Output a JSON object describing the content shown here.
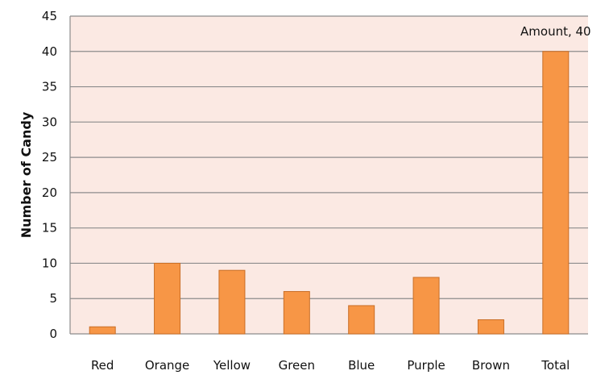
{
  "chart_data": {
    "type": "bar",
    "categories": [
      "Red",
      "Orange",
      "Yellow",
      "Green",
      "Blue",
      "Purple",
      "Brown",
      "Total"
    ],
    "values": [
      1,
      10,
      9,
      6,
      4,
      8,
      2,
      40
    ],
    "xlabel": "",
    "ylabel": "Number of Candy",
    "ylim": [
      0,
      45
    ],
    "yticks": [
      0,
      5,
      10,
      15,
      20,
      25,
      30,
      35,
      40,
      45
    ],
    "grid": true,
    "data_labels": [
      {
        "category": "Total",
        "text": "Amount, 40"
      }
    ],
    "colors": {
      "bar": "#f79646",
      "bar_edge": "#c96e26",
      "plot_background": "#fbe9e3",
      "grid": "#8c8c8c",
      "axis": "#8c8c8c"
    }
  }
}
